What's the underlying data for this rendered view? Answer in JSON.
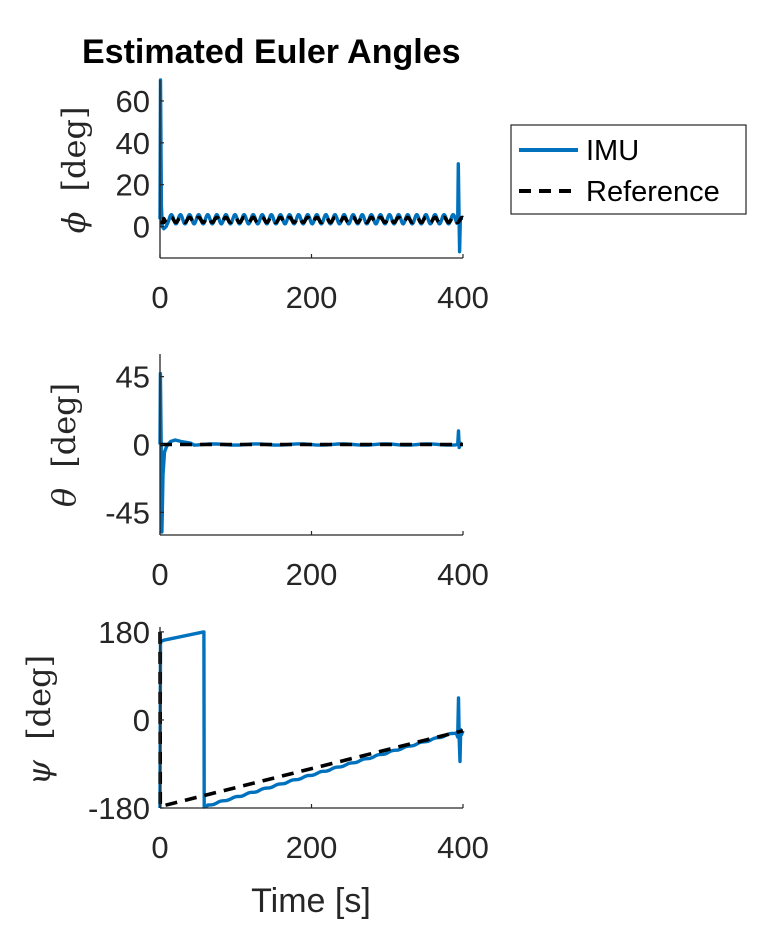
{
  "figure": {
    "title": "Estimated Euler Angles"
  },
  "legend": {
    "entries": [
      {
        "label": "IMU",
        "color": "#0072BD",
        "style": "solid"
      },
      {
        "label": "Reference",
        "color": "#000000",
        "style": "dashed"
      }
    ],
    "placement": "right of top subplot"
  },
  "chart_data": [
    {
      "type": "line",
      "ylabel_symbol": "ϕ",
      "ylabel_unit": "[deg]",
      "xlabel": "",
      "xlim": [
        0,
        400
      ],
      "ylim": [
        -15,
        70
      ],
      "xticks": [
        0,
        200,
        400
      ],
      "yticks": [
        0,
        20,
        40,
        60
      ],
      "ytick_labels": [
        "0",
        "20",
        "40",
        "60"
      ],
      "grid": false,
      "series": [
        {
          "name": "IMU",
          "color": "#0072BD",
          "style": "solid",
          "kind": "roll_imu",
          "params": {
            "mean": 3.5,
            "amplitude": 2.2,
            "period": 12,
            "spike_start": 70,
            "spike_end_high": 30,
            "spike_end_low": -12
          }
        },
        {
          "name": "Reference",
          "color": "#000000",
          "style": "dashed",
          "kind": "roll_ref",
          "params": {
            "mean": 3.2,
            "amplitude": 1.2,
            "period": 12
          }
        }
      ]
    },
    {
      "type": "line",
      "ylabel_symbol": "θ",
      "ylabel_unit": "[deg]",
      "xlabel": "",
      "xlim": [
        0,
        400
      ],
      "ylim": [
        -60,
        60
      ],
      "xticks": [
        0,
        200,
        400
      ],
      "yticks": [
        -45,
        0,
        45
      ],
      "ytick_labels": [
        "-45",
        "0",
        "45"
      ],
      "grid": false,
      "series": [
        {
          "name": "IMU",
          "color": "#0072BD",
          "style": "solid",
          "kind": "pitch_imu",
          "params": {
            "spike_high": 47,
            "spike_low": -58,
            "end_spike": 9
          }
        },
        {
          "name": "Reference",
          "color": "#000000",
          "style": "dashed",
          "kind": "pitch_ref",
          "params": {
            "value": 0
          }
        }
      ]
    },
    {
      "type": "line",
      "ylabel_symbol": "ψ",
      "ylabel_unit": "[deg]",
      "xlabel": "Time [s]",
      "xlim": [
        0,
        400
      ],
      "ylim": [
        -180,
        190
      ],
      "xticks": [
        0,
        200,
        400
      ],
      "yticks": [
        -180,
        0,
        180
      ],
      "ytick_labels": [
        "-180",
        "0",
        "180"
      ],
      "grid": false,
      "series": [
        {
          "name": "IMU",
          "color": "#0072BD",
          "style": "solid",
          "kind": "yaw_imu",
          "params": {
            "start": 160,
            "wrap_time": 58,
            "wrap_high": 180,
            "wrap_low": -178,
            "end_value": -25,
            "end_spike_high": 45,
            "end_spike_low": -85
          }
        },
        {
          "name": "Reference",
          "color": "#000000",
          "style": "dashed",
          "kind": "yaw_ref",
          "params": {
            "start_high": 180,
            "start_low": -177,
            "end_value": -22
          }
        }
      ]
    }
  ]
}
